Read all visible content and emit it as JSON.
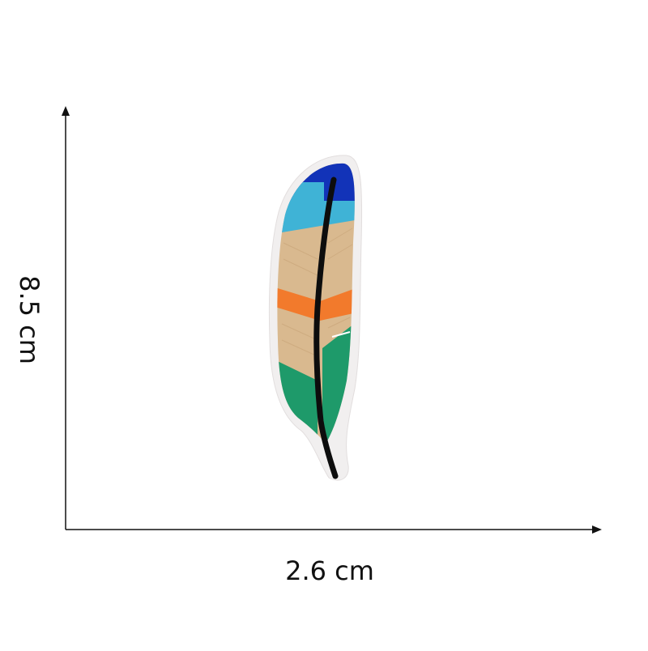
{
  "dimensions": {
    "width_label": "2.6 cm",
    "height_label": "8.5 cm"
  },
  "product": {
    "name": "feather-embroidered-patch",
    "colors": {
      "tip": "#1233b8",
      "light_blue": "#3fb3d6",
      "body": "#d9b98f",
      "stripe": "#f27a2c",
      "green": "#1e9a6a",
      "shaft": "#0d0d0d",
      "backing": "#f1efef"
    }
  },
  "axes": {
    "color": "#111111"
  }
}
